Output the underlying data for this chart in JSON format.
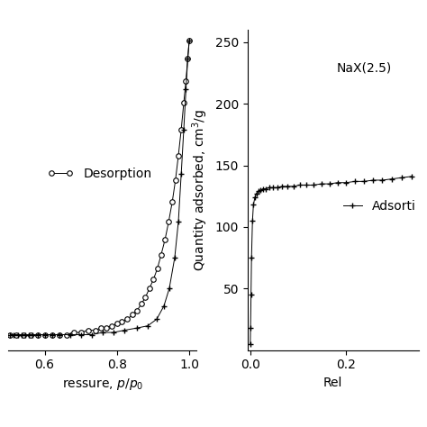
{
  "left_plot": {
    "xlabel": "ressure, $p/p_0$",
    "xlim": [
      0.5,
      1.02
    ],
    "xticks": [
      0.6,
      0.8,
      1.0
    ],
    "ylim": [
      120,
      265
    ],
    "adsorption_x": [
      0.505,
      0.515,
      0.525,
      0.535,
      0.545,
      0.555,
      0.565,
      0.58,
      0.6,
      0.62,
      0.64,
      0.67,
      0.7,
      0.73,
      0.76,
      0.79,
      0.82,
      0.855,
      0.885,
      0.91,
      0.93,
      0.945,
      0.96,
      0.97,
      0.978,
      0.985,
      0.991,
      0.996,
      1.0
    ],
    "adsorption_y": [
      127,
      127,
      127,
      127,
      127,
      127,
      127,
      127,
      127,
      127,
      127,
      127,
      127,
      127,
      128,
      128,
      129,
      130,
      131,
      134,
      140,
      148,
      162,
      178,
      200,
      220,
      238,
      252,
      260
    ],
    "desorption_x": [
      1.0,
      0.996,
      0.991,
      0.985,
      0.978,
      0.97,
      0.962,
      0.953,
      0.943,
      0.933,
      0.922,
      0.912,
      0.901,
      0.89,
      0.879,
      0.868,
      0.856,
      0.843,
      0.829,
      0.814,
      0.8,
      0.785,
      0.77,
      0.755,
      0.74,
      0.72,
      0.7,
      0.68,
      0.66,
      0.64,
      0.62,
      0.6,
      0.58,
      0.56,
      0.54,
      0.52,
      0.505
    ],
    "desorption_y": [
      260,
      252,
      242,
      232,
      220,
      208,
      197,
      187,
      178,
      170,
      163,
      157,
      152,
      148,
      144,
      141,
      138,
      136,
      134,
      133,
      132,
      131,
      130,
      130,
      129,
      129,
      128,
      128,
      127,
      127,
      127,
      127,
      127,
      127,
      127,
      127,
      127
    ],
    "legend_label_desorption": "Desorption"
  },
  "right_plot": {
    "ylabel": "Quantity adsorbed, cm$^3$/g",
    "xlim": [
      -0.005,
      0.35
    ],
    "xticks": [
      0.0,
      0.2
    ],
    "ylim": [
      0,
      260
    ],
    "yticks": [
      50,
      100,
      150,
      200,
      250
    ],
    "annotation": "NaX(2.5)",
    "legend_label": "Adsorti",
    "adsorption_x": [
      0.0005,
      0.001,
      0.002,
      0.003,
      0.005,
      0.007,
      0.01,
      0.013,
      0.017,
      0.022,
      0.027,
      0.033,
      0.04,
      0.048,
      0.057,
      0.067,
      0.078,
      0.09,
      0.103,
      0.117,
      0.132,
      0.148,
      0.165,
      0.182,
      0.2,
      0.218,
      0.237,
      0.256,
      0.275,
      0.295,
      0.315,
      0.335
    ],
    "adsorption_y": [
      5,
      18,
      45,
      75,
      105,
      118,
      124,
      127,
      129,
      130,
      131,
      131,
      132,
      132,
      132,
      133,
      133,
      133,
      134,
      134,
      134,
      135,
      135,
      136,
      136,
      137,
      137,
      138,
      138,
      139,
      140,
      141
    ],
    "xlabel_partial": "Rel"
  },
  "background_color": "#ffffff",
  "line_color": "#000000",
  "fontsize": 10
}
